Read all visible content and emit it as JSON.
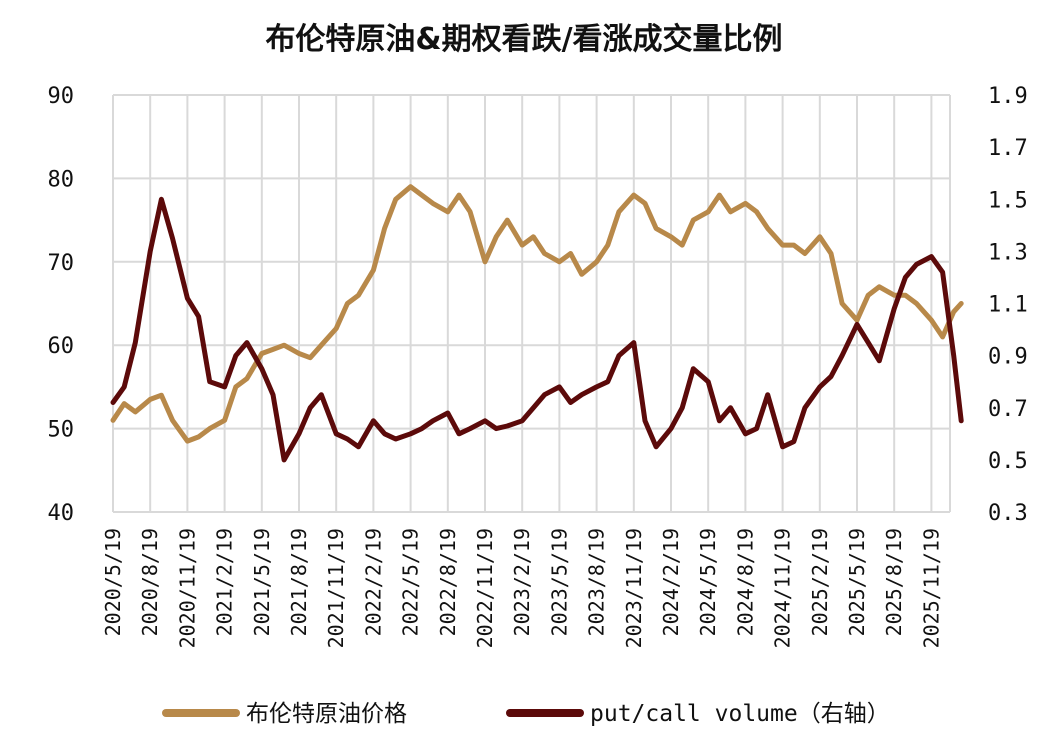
{
  "chart_data": {
    "type": "line",
    "title": "布伦特原油&期权看跌/看涨成交量比例",
    "x_ticks": [
      "2020/5/19",
      "2020/8/19",
      "2020/11/19",
      "2021/2/19",
      "2021/5/19",
      "2021/8/19",
      "2021/11/19",
      "2022/2/19",
      "2022/5/19",
      "2022/8/19",
      "2022/11/19",
      "2023/2/19",
      "2023/5/19",
      "2023/8/19",
      "2023/11/19",
      "2024/2/19",
      "2024/5/19",
      "2024/8/19",
      "2024/11/19",
      "2025/2/19",
      "2025/5/19",
      "2025/8/19",
      "2025/11/19"
    ],
    "y_left": {
      "min": 40,
      "max": 90,
      "ticks": [
        40,
        50,
        60,
        70,
        80,
        90
      ]
    },
    "y_right": {
      "min": 0.3,
      "max": 1.9,
      "ticks": [
        "0.3",
        "0.5",
        "0.7",
        "0.9",
        "1.1",
        "1.3",
        "1.5",
        "1.7",
        "1.9"
      ]
    },
    "grid": true,
    "legend_position": "bottom",
    "series": [
      {
        "name": "布伦特原油价格",
        "axis": "left",
        "color": "#B8894A",
        "x": [
          0,
          0.3,
          0.6,
          1,
          1.3,
          1.6,
          2,
          2.3,
          2.6,
          3,
          3.3,
          3.6,
          4,
          4.3,
          4.6,
          5,
          5.3,
          5.6,
          6,
          6.3,
          6.6,
          7,
          7.3,
          7.6,
          8,
          8.3,
          8.6,
          9,
          9.3,
          9.6,
          10,
          10.3,
          10.6,
          11,
          11.3,
          11.6,
          12,
          12.3,
          12.6,
          13,
          13.3,
          13.6,
          14,
          14.3,
          14.6,
          15,
          15.3,
          15.6,
          16,
          16.3,
          16.6,
          17,
          17.3,
          17.6,
          18,
          18.3,
          18.6,
          19,
          19.3,
          19.6,
          20,
          20.3,
          20.6,
          21,
          21.3,
          21.6,
          22,
          22.3,
          22.6,
          22.8
        ],
        "values": [
          51,
          53,
          52,
          53.5,
          54,
          51,
          48.5,
          49,
          50,
          51,
          55,
          56,
          59,
          59.5,
          60,
          59,
          58.5,
          60,
          62,
          65,
          66,
          69,
          74,
          77.5,
          79,
          78,
          77,
          76,
          78,
          76,
          70,
          73,
          75,
          72,
          73,
          71,
          70,
          71,
          68.5,
          70,
          72,
          76,
          78,
          77,
          74,
          73,
          72,
          75,
          76,
          78,
          76,
          77,
          76,
          74,
          72,
          72,
          71,
          73,
          71,
          65,
          63,
          66,
          67,
          66,
          66,
          65,
          63,
          61,
          64,
          65
        ]
      },
      {
        "name": "put/call volume（右轴）",
        "axis": "right",
        "color": "#5C0A0A",
        "x": [
          0,
          0.3,
          0.6,
          1,
          1.3,
          1.6,
          2,
          2.3,
          2.6,
          3,
          3.3,
          3.6,
          4,
          4.3,
          4.6,
          5,
          5.3,
          5.6,
          6,
          6.3,
          6.6,
          7,
          7.3,
          7.6,
          8,
          8.3,
          8.6,
          9,
          9.3,
          9.6,
          10,
          10.3,
          10.6,
          11,
          11.3,
          11.6,
          12,
          12.3,
          12.6,
          13,
          13.3,
          13.6,
          14,
          14.3,
          14.6,
          15,
          15.3,
          15.6,
          16,
          16.3,
          16.6,
          17,
          17.3,
          17.6,
          18,
          18.3,
          18.6,
          19,
          19.3,
          19.6,
          20,
          20.3,
          20.6,
          21,
          21.3,
          21.6,
          22,
          22.3,
          22.6,
          22.8
        ],
        "values": [
          0.72,
          0.78,
          0.95,
          1.3,
          1.5,
          1.35,
          1.12,
          1.05,
          0.8,
          0.78,
          0.9,
          0.95,
          0.85,
          0.75,
          0.5,
          0.6,
          0.7,
          0.75,
          0.6,
          0.58,
          0.55,
          0.65,
          0.6,
          0.58,
          0.6,
          0.62,
          0.65,
          0.68,
          0.6,
          0.62,
          0.65,
          0.62,
          0.63,
          0.65,
          0.7,
          0.75,
          0.78,
          0.72,
          0.75,
          0.78,
          0.8,
          0.9,
          0.95,
          0.65,
          0.55,
          0.62,
          0.7,
          0.85,
          0.8,
          0.65,
          0.7,
          0.6,
          0.62,
          0.75,
          0.55,
          0.57,
          0.7,
          0.78,
          0.82,
          0.9,
          1.02,
          0.95,
          0.88,
          1.08,
          1.2,
          1.25,
          1.28,
          1.22,
          0.9,
          0.65
        ]
      }
    ]
  }
}
